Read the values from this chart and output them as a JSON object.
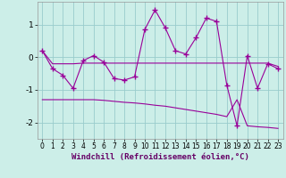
{
  "xlabel": "Windchill (Refroidissement éolien,°C)",
  "background_color": "#cceee8",
  "line_color": "#990099",
  "grid_color": "#99cccc",
  "x_values": [
    0,
    1,
    2,
    3,
    4,
    5,
    6,
    7,
    8,
    9,
    10,
    11,
    12,
    13,
    14,
    15,
    16,
    17,
    18,
    19,
    20,
    21,
    22,
    23
  ],
  "main_line": [
    0.2,
    -0.35,
    -0.55,
    -0.95,
    -0.1,
    0.05,
    -0.15,
    -0.65,
    -0.7,
    -0.6,
    0.85,
    1.45,
    0.9,
    0.2,
    0.1,
    0.6,
    1.2,
    1.1,
    -0.85,
    -2.1,
    0.05,
    -0.95,
    -0.2,
    -0.35
  ],
  "upper_line": [
    0.2,
    -0.2,
    -0.2,
    -0.2,
    -0.18,
    -0.18,
    -0.18,
    -0.18,
    -0.18,
    -0.18,
    -0.18,
    -0.18,
    -0.18,
    -0.18,
    -0.18,
    -0.18,
    -0.18,
    -0.18,
    -0.18,
    -0.18,
    -0.18,
    -0.18,
    -0.18,
    -0.28
  ],
  "lower_line": [
    -1.3,
    -1.3,
    -1.3,
    -1.3,
    -1.3,
    -1.3,
    -1.32,
    -1.35,
    -1.38,
    -1.4,
    -1.43,
    -1.47,
    -1.5,
    -1.55,
    -1.6,
    -1.65,
    -1.7,
    -1.75,
    -1.82,
    -1.3,
    -2.1,
    -2.13,
    -2.15,
    -2.18
  ],
  "xlim": [
    -0.5,
    23.5
  ],
  "ylim": [
    -2.5,
    1.7
  ],
  "yticks": [
    -2,
    -1,
    0,
    1
  ],
  "xticks": [
    0,
    1,
    2,
    3,
    4,
    5,
    6,
    7,
    8,
    9,
    10,
    11,
    12,
    13,
    14,
    15,
    16,
    17,
    18,
    19,
    20,
    21,
    22,
    23
  ]
}
